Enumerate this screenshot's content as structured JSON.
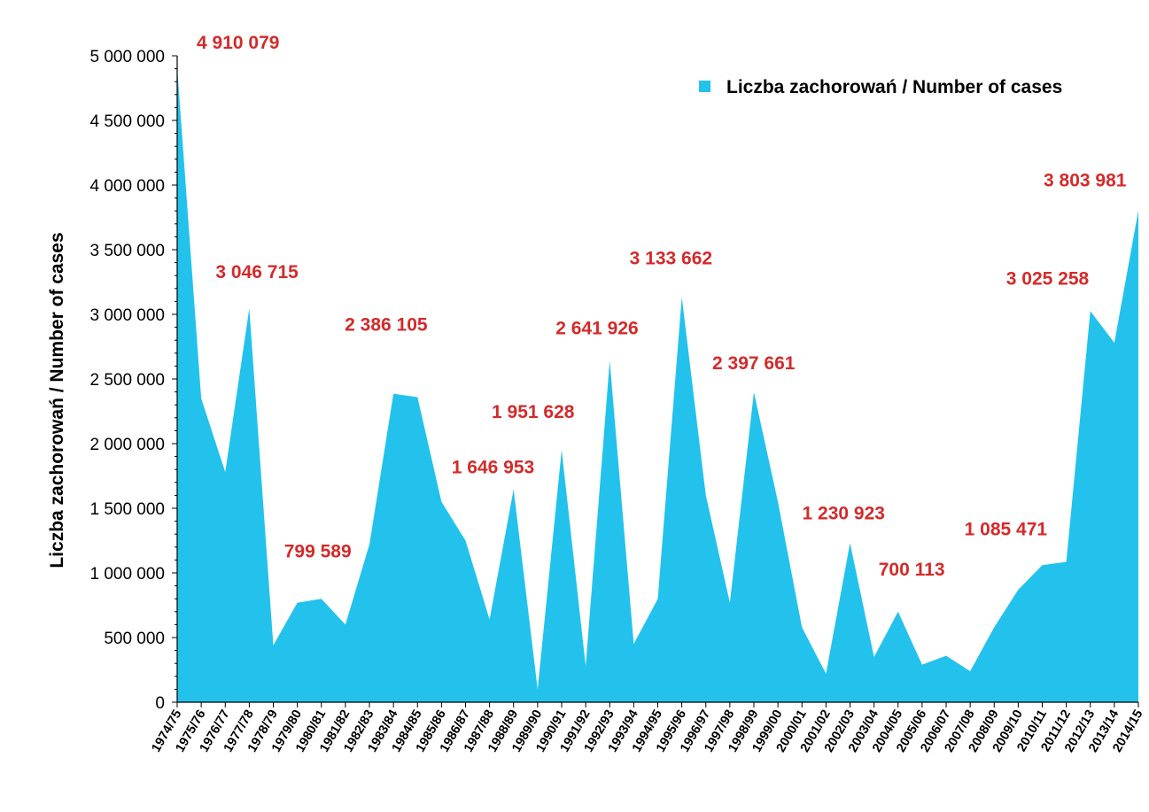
{
  "chart_data": {
    "type": "area",
    "xlabel": "",
    "ylabel": "Liczba zachorowań  /  Number of cases",
    "ylim": [
      0,
      5000000
    ],
    "yticks": [
      0,
      500000,
      1000000,
      1500000,
      2000000,
      2500000,
      3000000,
      3500000,
      4000000,
      4500000,
      5000000
    ],
    "ytick_labels": [
      "0",
      "500 000",
      "1 000 000",
      "1 500 000",
      "2 000 000",
      "2 500 000",
      "3 000 000",
      "3 500 000",
      "4 000 000",
      "4 500 000",
      "5 000 000"
    ],
    "categories": [
      "1974/75",
      "1975/76",
      "1976/77",
      "1977/78",
      "1978/79",
      "1979/80",
      "1980/81",
      "1981/82",
      "1982/83",
      "1983/84",
      "1984/85",
      "1985/86",
      "1986/87",
      "1987/88",
      "1988/89",
      "1989/90",
      "1990/91",
      "1991/92",
      "1992/93",
      "1993/94",
      "1994/95",
      "1995/96",
      "1996/97",
      "1997/98",
      "1998/99",
      "1999/00",
      "2000/01",
      "2001/02",
      "2002/03",
      "2003/04",
      "2004/05",
      "2005/06",
      "2006/07",
      "2007/08",
      "2008/09",
      "2009/10",
      "2010/11",
      "2011/12",
      "2012/13",
      "2013/14",
      "2014/15"
    ],
    "series": [
      {
        "name": "Liczba zachorowań / Number of cases",
        "color": "#23c2ec",
        "values": [
          4910079,
          2350000,
          1780000,
          3046715,
          440000,
          770000,
          799589,
          600000,
          1220000,
          2386105,
          2360000,
          1550000,
          1250000,
          640000,
          1646953,
          100000,
          1951628,
          280000,
          2641926,
          450000,
          800000,
          3133662,
          1600000,
          770000,
          2397661,
          1550000,
          580000,
          220000,
          1230923,
          350000,
          700113,
          290000,
          360000,
          240000,
          580000,
          870000,
          1060000,
          1085471,
          3025258,
          2780000,
          3803981
        ]
      }
    ],
    "annotations": [
      {
        "index": 0,
        "text": "4 910 079"
      },
      {
        "index": 3,
        "text": "3 046 715"
      },
      {
        "index": 6,
        "text": "799 589"
      },
      {
        "index": 9,
        "text": "2 386 105"
      },
      {
        "index": 14,
        "text": "1 646 953"
      },
      {
        "index": 16,
        "text": "1 951 628"
      },
      {
        "index": 18,
        "text": "2 641 926"
      },
      {
        "index": 21,
        "text": "3 133 662"
      },
      {
        "index": 24,
        "text": "2 397 661"
      },
      {
        "index": 28,
        "text": "1 230 923"
      },
      {
        "index": 30,
        "text": "700 113"
      },
      {
        "index": 37,
        "text": "1 085 471"
      },
      {
        "index": 38,
        "text": "3 025 258"
      },
      {
        "index": 40,
        "text": "3 803 981"
      }
    ],
    "annotation_color": "#d42a2a",
    "legend": {
      "position": "top-right",
      "label": "Liczba zachorowań / Number of cases"
    },
    "grid": false
  }
}
